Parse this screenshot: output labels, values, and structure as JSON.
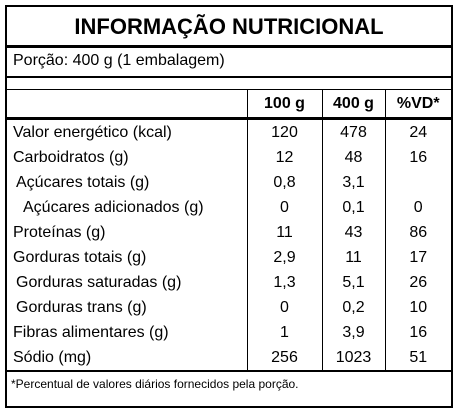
{
  "header": {
    "title": "INFORMAÇÃO NUTRICIONAL",
    "serving": "Porção: 400 g (1 embalagem)"
  },
  "table": {
    "headers": [
      "",
      "100 g",
      "400 g",
      "%VD*"
    ],
    "rows": [
      [
        "Valor energético (kcal)",
        "120",
        "478",
        "24"
      ],
      [
        "Carboidratos (g)",
        "12",
        "48",
        "16"
      ],
      [
        "Açúcares totais (g)",
        "0,8",
        "3,1",
        ""
      ],
      [
        "Açúcares adicionados (g)",
        "0",
        "0,1",
        "0"
      ],
      [
        "Proteínas (g)",
        "11",
        "43",
        "86"
      ],
      [
        "Gorduras totais (g)",
        "2,9",
        "11",
        "17"
      ],
      [
        "Gorduras saturadas (g)",
        "1,3",
        "5,1",
        "26"
      ],
      [
        "Gorduras trans (g)",
        "0",
        "0,2",
        "10"
      ],
      [
        "Fibras alimentares (g)",
        "1",
        "3,9",
        "16"
      ],
      [
        "Sódio (mg)",
        "256",
        "1023",
        "51"
      ]
    ]
  },
  "footnote": "*Percentual de valores diários fornecidos pela porção."
}
